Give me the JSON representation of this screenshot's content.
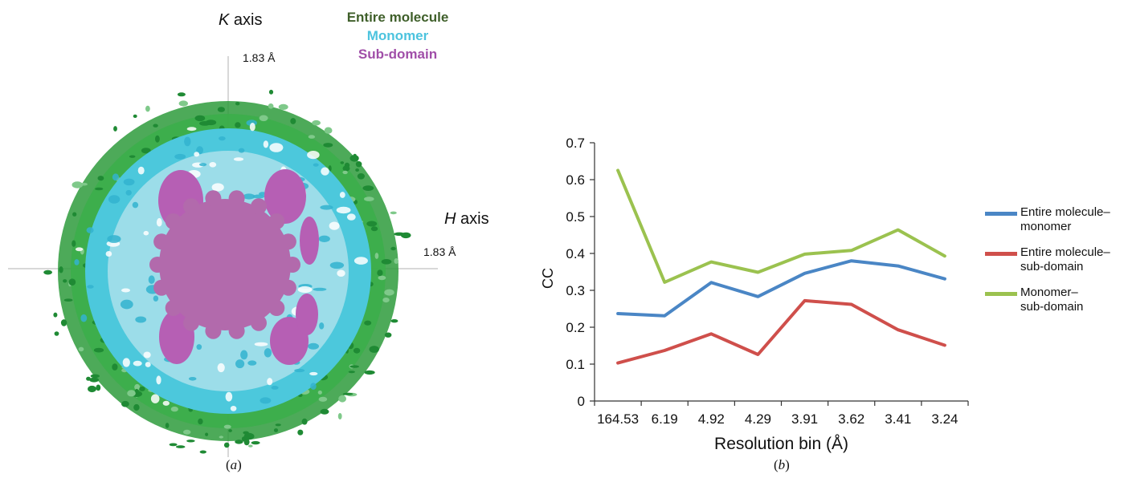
{
  "panel_a": {
    "k_axis_italic": "K",
    "k_axis_rest": " axis",
    "h_axis_italic": "H",
    "h_axis_rest": " axis",
    "k_value": "1.83 Å",
    "h_value": "1.83 Å",
    "legend": [
      {
        "label": "Entire molecule",
        "color": "#3f5f2a"
      },
      {
        "label": "Monomer",
        "color": "#4cc3de"
      },
      {
        "label": "Sub-domain",
        "color": "#a04ea8"
      }
    ],
    "caption": "a",
    "colors": {
      "green": "#2e9b3c",
      "cyan": "#4cc8dc",
      "magenta": "#b65fb4"
    }
  },
  "caption_b": "b",
  "chart_data": {
    "type": "line",
    "categories": [
      "164.53",
      "6.19",
      "4.92",
      "4.29",
      "3.91",
      "3.62",
      "3.41",
      "3.24"
    ],
    "xlabel": "Resolution bin (Å)",
    "ylabel": "CC",
    "ylim": [
      0,
      0.7
    ],
    "yticks": [
      "0",
      "0.1",
      "0.2",
      "0.3",
      "0.4",
      "0.5",
      "0.6",
      "0.7"
    ],
    "grid": false,
    "legend_position": "right",
    "series": [
      {
        "name_line1": "Entire molecule–",
        "name_line2": "monomer",
        "color": "#4a86c5",
        "values": [
          0.237,
          0.231,
          0.321,
          0.283,
          0.346,
          0.38,
          0.366,
          0.331
        ]
      },
      {
        "name_line1": "Entire molecule–",
        "name_line2": "sub-domain",
        "color": "#cf4f4b",
        "values": [
          0.103,
          0.137,
          0.182,
          0.126,
          0.272,
          0.262,
          0.193,
          0.151
        ]
      },
      {
        "name_line1": "Monomer–",
        "name_line2": "sub-domain",
        "color": "#9bc24f",
        "values": [
          0.625,
          0.322,
          0.377,
          0.349,
          0.398,
          0.408,
          0.464,
          0.393
        ]
      }
    ]
  }
}
